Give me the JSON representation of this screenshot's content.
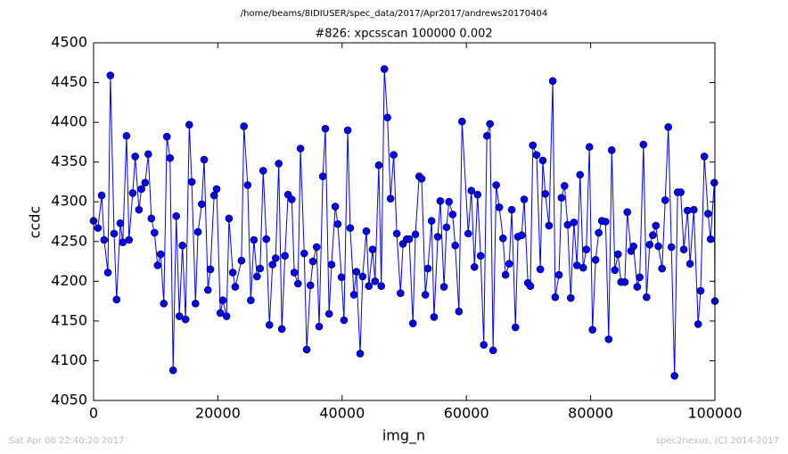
{
  "chart_data": {
    "type": "line",
    "suptitle": "/home/beams/8IDIUSER/spec_data/2017/Apr2017/andrews20170404",
    "title": "#826: xpcsscan 100000 0.002",
    "xlabel": "img_n",
    "ylabel": "ccdc",
    "footer_left": "Sat Apr 08 22:40:20 2017",
    "footer_right": "spec2nexus, (C) 2014-2017",
    "color": "#0000ff",
    "xlim": [
      0,
      100000
    ],
    "xticks": [
      0,
      20000,
      40000,
      60000,
      80000,
      100000
    ],
    "ylim": [
      4050,
      4500
    ],
    "yticks": [
      4050,
      4100,
      4150,
      4200,
      4250,
      4300,
      4350,
      4400,
      4450,
      4500
    ],
    "x": [
      0,
      700,
      1300,
      1700,
      2300,
      2700,
      3300,
      3700,
      4300,
      4700,
      5300,
      5700,
      6300,
      6700,
      7300,
      7700,
      8300,
      8800,
      9300,
      9800,
      10300,
      10800,
      11300,
      11800,
      12300,
      12800,
      13300,
      13800,
      14300,
      14800,
      15400,
      15800,
      16400,
      16800,
      17400,
      17800,
      18400,
      18800,
      19400,
      19800,
      20400,
      20800,
      21400,
      21800,
      22400,
      22800,
      23800,
      24200,
      24800,
      25300,
      25800,
      26300,
      26800,
      27300,
      27800,
      28300,
      28800,
      29300,
      29800,
      30300,
      30800,
      31300,
      31900,
      32300,
      32900,
      33300,
      33900,
      34300,
      34900,
      35300,
      35900,
      36300,
      36900,
      37300,
      37900,
      38300,
      38900,
      39300,
      39900,
      40300,
      40900,
      41300,
      41900,
      42300,
      42900,
      43300,
      43900,
      44300,
      44900,
      45300,
      45900,
      46300,
      46800,
      47300,
      47800,
      48300,
      48800,
      49400,
      49800,
      50400,
      50800,
      51400,
      51800,
      52400,
      52800,
      53400,
      53800,
      54400,
      54800,
      55400,
      55800,
      56400,
      56800,
      57200,
      57800,
      58200,
      58800,
      59300,
      60300,
      60800,
      61300,
      61800,
      62300,
      62800,
      63300,
      63800,
      64300,
      64800,
      65300,
      65900,
      66300,
      66900,
      67300,
      67900,
      68300,
      68900,
      69300,
      69900,
      70300,
      70700,
      71300,
      71900,
      72300,
      72700,
      73300,
      73900,
      74300,
      74900,
      75300,
      75800,
      76300,
      76800,
      77300,
      77800,
      78300,
      78800,
      79300,
      79800,
      80300,
      80800,
      81300,
      81800,
      82400,
      82900,
      83400,
      83900,
      84400,
      84900,
      85500,
      85900,
      86500,
      86900,
      87500,
      87900,
      88500,
      89000,
      89500,
      90000,
      90500,
      90900,
      91500,
      92000,
      92500,
      93000,
      93500,
      94000,
      94500,
      95000,
      95600,
      96000,
      96600,
      97300,
      97700,
      98300,
      98900,
      99300,
      99900,
      100000
    ],
    "values": [
      4276,
      4267,
      4308,
      4252,
      4211,
      4459,
      4260,
      4177,
      4273,
      4249,
      4383,
      4252,
      4311,
      4357,
      4290,
      4316,
      4324,
      4360,
      4279,
      4261,
      4220,
      4234,
      4172,
      4382,
      4355,
      4088,
      4282,
      4156,
      4245,
      4152,
      4397,
      4325,
      4172,
      4262,
      4297,
      4353,
      4189,
      4215,
      4308,
      4316,
      4160,
      4176,
      4156,
      4279,
      4211,
      4193,
      4226,
      4395,
      4321,
      4176,
      4252,
      4206,
      4216,
      4339,
      4253,
      4145,
      4221,
      4229,
      4348,
      4140,
      4232,
      4309,
      4303,
      4211,
      4197,
      4367,
      4235,
      4114,
      4195,
      4225,
      4243,
      4143,
      4332,
      4392,
      4159,
      4221,
      4294,
      4272,
      4205,
      4151,
      4390,
      4267,
      4183,
      4212,
      4109,
      4206,
      4263,
      4194,
      4240,
      4200,
      4346,
      4194,
      4467,
      4406,
      4304,
      4359,
      4260,
      4185,
      4247,
      4253,
      4253,
      4147,
      4259,
      4332,
      4329,
      4183,
      4216,
      4276,
      4155,
      4256,
      4301,
      4193,
      4268,
      4300,
      4284,
      4245,
      4162,
      4401,
      4260,
      4314,
      4218,
      4309,
      4232,
      4120,
      4383,
      4398,
      4113,
      4321,
      4293,
      4254,
      4208,
      4222,
      4290,
      4142,
      4256,
      4258,
      4303,
      4198,
      4194,
      4371,
      4359,
      4215,
      4352,
      4310,
      4270,
      4452,
      4180,
      4208,
      4305,
      4320,
      4271,
      4179,
      4274,
      4220,
      4334,
      4217,
      4240,
      4369,
      4139,
      4227,
      4261,
      4276,
      4275,
      4127,
      4365,
      4214,
      4234,
      4199,
      4199,
      4287,
      4238,
      4244,
      4193,
      4205,
      4372,
      4180,
      4246,
      4258,
      4270,
      4244,
      4216,
      4302,
      4394,
      4243,
      4081,
      4312,
      4312,
      4240,
      4289,
      4222,
      4290,
      4146,
      4188,
      4357,
      4285,
      4253,
      4324,
      4175
    ]
  }
}
